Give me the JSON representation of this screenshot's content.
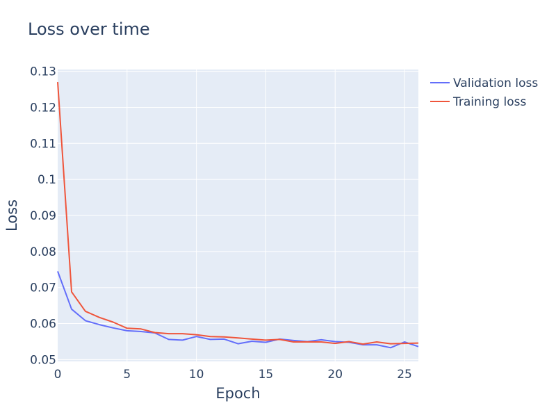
{
  "chart_data": {
    "type": "line",
    "title": "Loss over time",
    "xlabel": "Epoch",
    "ylabel": "Loss",
    "xlim": [
      0,
      26
    ],
    "ylim": [
      0.0495,
      0.1305
    ],
    "xticks": [
      0,
      5,
      10,
      15,
      20,
      25
    ],
    "xtick_labels": [
      "0",
      "5",
      "10",
      "15",
      "20",
      "25"
    ],
    "yticks": [
      0.05,
      0.06,
      0.07,
      0.08,
      0.09,
      0.1,
      0.11,
      0.12,
      0.13
    ],
    "ytick_labels": [
      "0.05",
      "0.06",
      "0.07",
      "0.08",
      "0.09",
      "0.1",
      "0.11",
      "0.12",
      "0.13"
    ],
    "grid": true,
    "legend_position": "top-right, outside plot",
    "background_color": "#e5ecf6",
    "grid_color": "#ffffff",
    "x": [
      0,
      1,
      2,
      3,
      4,
      5,
      6,
      7,
      8,
      9,
      10,
      11,
      12,
      13,
      14,
      15,
      16,
      17,
      18,
      19,
      20,
      21,
      22,
      23,
      24,
      25,
      26
    ],
    "series": [
      {
        "name": "Validation loss",
        "color": "#636efa",
        "values": [
          0.0745,
          0.064,
          0.0608,
          0.0597,
          0.0588,
          0.058,
          0.0578,
          0.0574,
          0.0556,
          0.0554,
          0.0564,
          0.0556,
          0.0557,
          0.0544,
          0.0551,
          0.0548,
          0.0557,
          0.0553,
          0.055,
          0.0555,
          0.055,
          0.0548,
          0.0541,
          0.0541,
          0.0533,
          0.0549,
          0.0536
        ]
      },
      {
        "name": "Training loss",
        "color": "#ef553b",
        "values": [
          0.127,
          0.0688,
          0.0634,
          0.0617,
          0.0604,
          0.0587,
          0.0585,
          0.0575,
          0.0572,
          0.0572,
          0.0569,
          0.0564,
          0.0563,
          0.056,
          0.0557,
          0.0554,
          0.0556,
          0.0549,
          0.0549,
          0.0549,
          0.0545,
          0.055,
          0.0543,
          0.0549,
          0.0544,
          0.0545,
          0.0546
        ]
      }
    ]
  }
}
